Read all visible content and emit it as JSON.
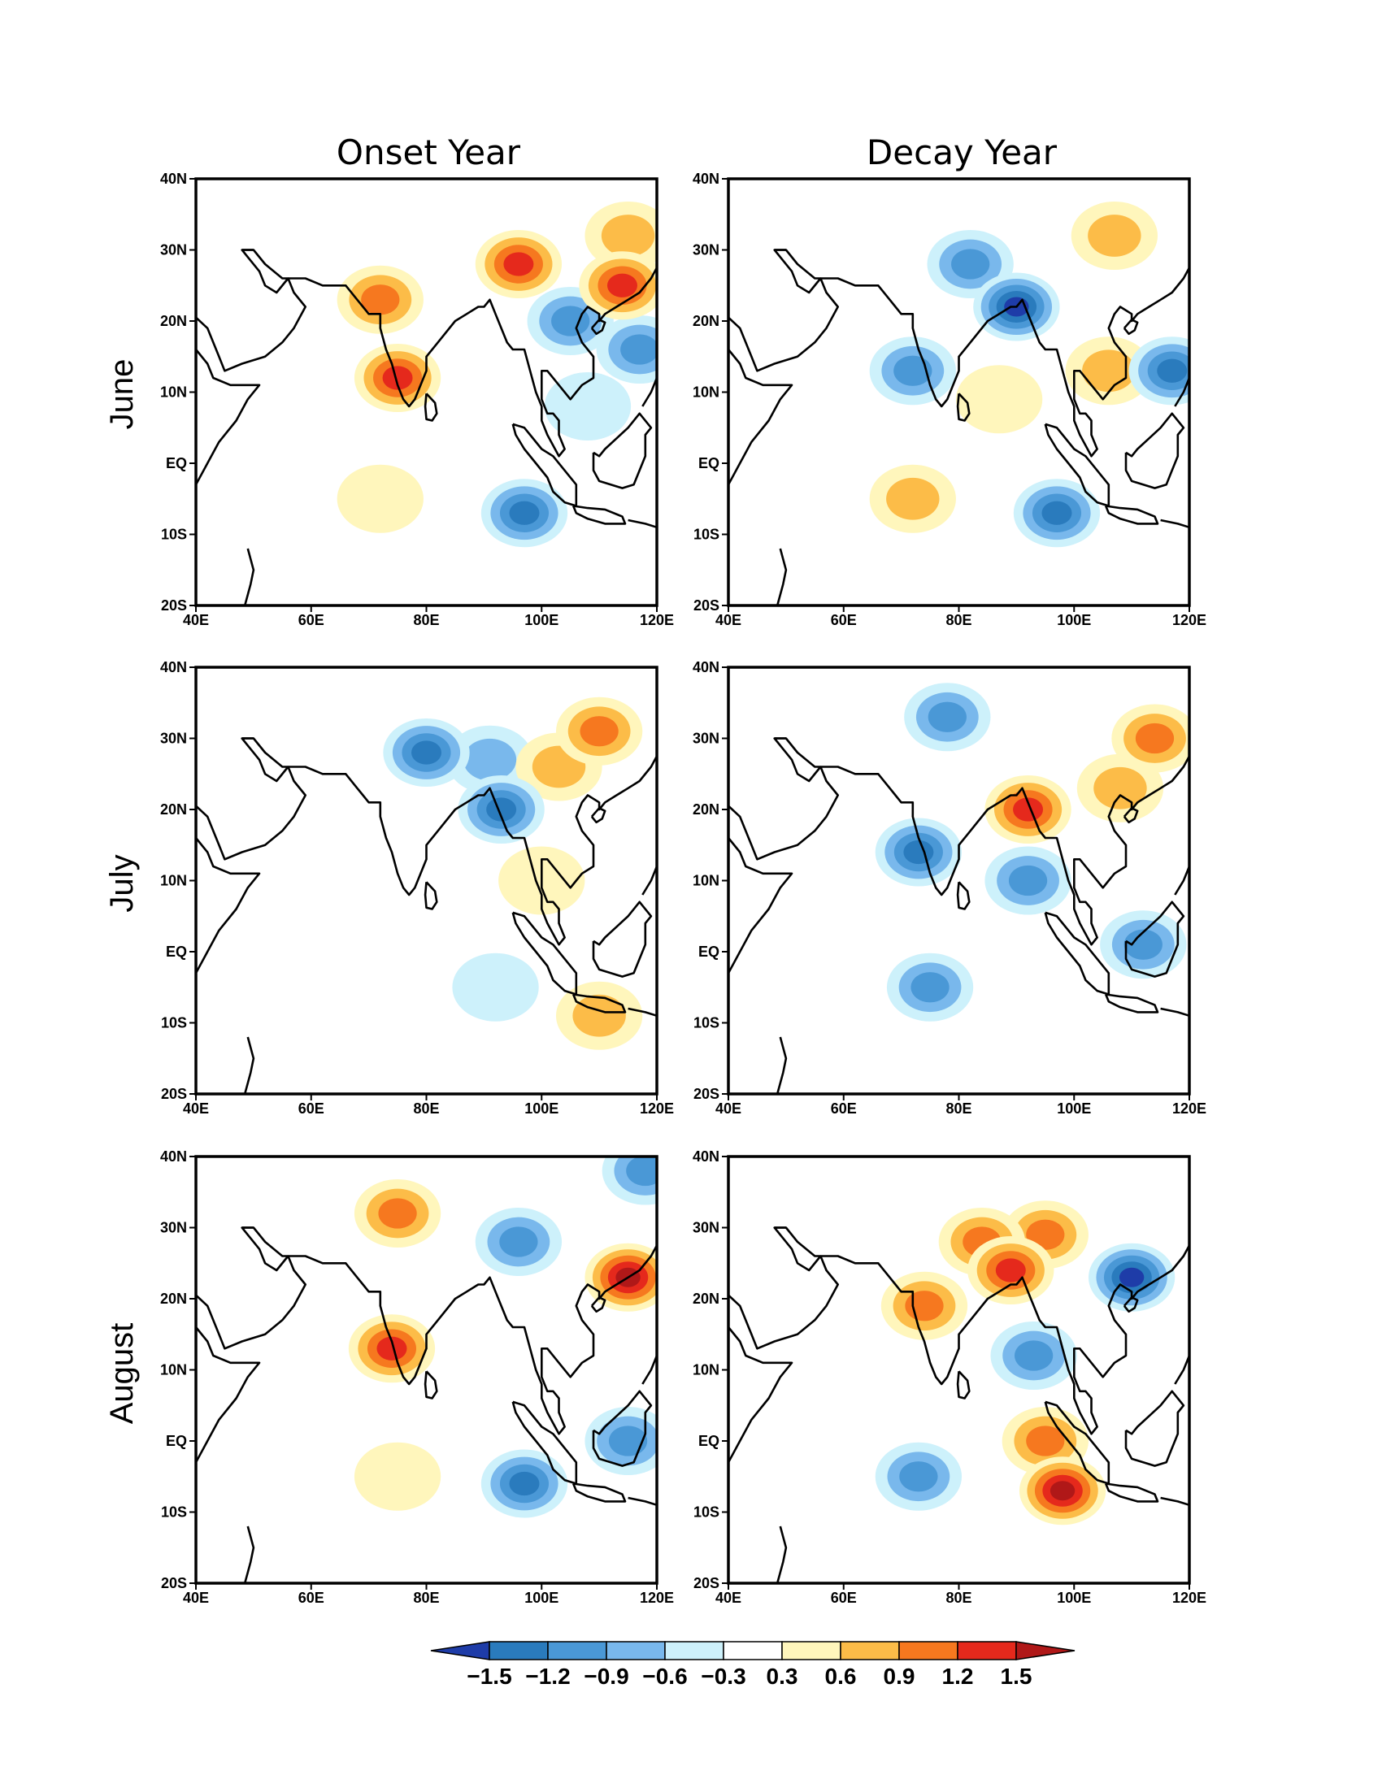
{
  "columns": [
    "Onset Year",
    "Decay Year"
  ],
  "rows": [
    "June",
    "July",
    "August"
  ],
  "lat_ticks": [
    "40N",
    "30N",
    "20N",
    "10N",
    "EQ",
    "10S",
    "20S"
  ],
  "lon_ticks": [
    "40E",
    "60E",
    "80E",
    "100E",
    "120E"
  ],
  "colorbar": {
    "labels": [
      "−1.5",
      "−1.2",
      "−0.9",
      "−0.6",
      "−0.3",
      "0.3",
      "0.6",
      "0.9",
      "1.2",
      "1.5"
    ],
    "colors": [
      "#1e3ca8",
      "#2a7bbd",
      "#4a98d6",
      "#79b8ec",
      "#cdf1fb",
      "#ffffff",
      "#fff6bc",
      "#fcbc48",
      "#f6781f",
      "#e5291c",
      "#b01818"
    ],
    "min_color": "#1e3ca8",
    "max_color": "#b01818"
  },
  "chart_data": {
    "type": "heatmap",
    "panels": [
      {
        "row": "June",
        "column": "Onset Year",
        "anomalies": [
          {
            "lon": 75,
            "lat": 12,
            "value": 1.2
          },
          {
            "lon": 72,
            "lat": 23,
            "value": 0.9
          },
          {
            "lon": 96,
            "lat": 28,
            "value": 1.2
          },
          {
            "lon": 114,
            "lat": 25,
            "value": 1.2
          },
          {
            "lon": 115,
            "lat": 32,
            "value": 0.6
          },
          {
            "lon": 105,
            "lat": 20,
            "value": -0.9
          },
          {
            "lon": 117,
            "lat": 16,
            "value": -0.9
          },
          {
            "lon": 97,
            "lat": -7,
            "value": -1.2
          },
          {
            "lon": 72,
            "lat": -5,
            "value": 0.3
          },
          {
            "lon": 108,
            "lat": 8,
            "value": -0.3
          }
        ]
      },
      {
        "row": "June",
        "column": "Decay Year",
        "anomalies": [
          {
            "lon": 90,
            "lat": 22,
            "value": -1.5
          },
          {
            "lon": 82,
            "lat": 28,
            "value": -0.9
          },
          {
            "lon": 72,
            "lat": 13,
            "value": -0.9
          },
          {
            "lon": 117,
            "lat": 13,
            "value": -1.2
          },
          {
            "lon": 97,
            "lat": -7,
            "value": -1.2
          },
          {
            "lon": 72,
            "lat": -5,
            "value": 0.6
          },
          {
            "lon": 106,
            "lat": 13,
            "value": 0.6
          },
          {
            "lon": 87,
            "lat": 9,
            "value": 0.3
          },
          {
            "lon": 107,
            "lat": 32,
            "value": 0.6
          }
        ]
      },
      {
        "row": "July",
        "column": "Onset Year",
        "anomalies": [
          {
            "lon": 80,
            "lat": 28,
            "value": -1.2
          },
          {
            "lon": 93,
            "lat": 20,
            "value": -1.2
          },
          {
            "lon": 91,
            "lat": 27,
            "value": -0.6
          },
          {
            "lon": 110,
            "lat": 31,
            "value": 0.9
          },
          {
            "lon": 103,
            "lat": 26,
            "value": 0.6
          },
          {
            "lon": 110,
            "lat": -9,
            "value": 0.6
          },
          {
            "lon": 100,
            "lat": 10,
            "value": 0.3
          },
          {
            "lon": 92,
            "lat": -5,
            "value": -0.3
          }
        ]
      },
      {
        "row": "July",
        "column": "Decay Year",
        "anomalies": [
          {
            "lon": 73,
            "lat": 14,
            "value": -1.2
          },
          {
            "lon": 78,
            "lat": 33,
            "value": -0.9
          },
          {
            "lon": 92,
            "lat": 20,
            "value": 1.2
          },
          {
            "lon": 114,
            "lat": 30,
            "value": 0.9
          },
          {
            "lon": 108,
            "lat": 23,
            "value": 0.6
          },
          {
            "lon": 75,
            "lat": -5,
            "value": -0.9
          },
          {
            "lon": 92,
            "lat": 10,
            "value": -0.9
          },
          {
            "lon": 112,
            "lat": 1,
            "value": -0.9
          }
        ]
      },
      {
        "row": "August",
        "column": "Onset Year",
        "anomalies": [
          {
            "lon": 74,
            "lat": 13,
            "value": 1.2
          },
          {
            "lon": 75,
            "lat": 32,
            "value": 0.9
          },
          {
            "lon": 115,
            "lat": 23,
            "value": 1.5
          },
          {
            "lon": 97,
            "lat": -6,
            "value": -1.2
          },
          {
            "lon": 96,
            "lat": 28,
            "value": -0.9
          },
          {
            "lon": 115,
            "lat": 0,
            "value": -0.9
          },
          {
            "lon": 118,
            "lat": 38,
            "value": -0.9
          },
          {
            "lon": 75,
            "lat": -5,
            "value": 0.3
          }
        ]
      },
      {
        "row": "August",
        "column": "Decay Year",
        "anomalies": [
          {
            "lon": 98,
            "lat": -7,
            "value": 1.5
          },
          {
            "lon": 95,
            "lat": 0,
            "value": 0.9
          },
          {
            "lon": 110,
            "lat": 23,
            "value": -1.5
          },
          {
            "lon": 89,
            "lat": 24,
            "value": 1.2
          },
          {
            "lon": 73,
            "lat": -5,
            "value": -0.9
          },
          {
            "lon": 93,
            "lat": 12,
            "value": -0.9
          },
          {
            "lon": 95,
            "lat": 29,
            "value": 0.9
          },
          {
            "lon": 74,
            "lat": 19,
            "value": 0.9
          },
          {
            "lon": 84,
            "lat": 28,
            "value": 0.9
          }
        ]
      }
    ]
  }
}
